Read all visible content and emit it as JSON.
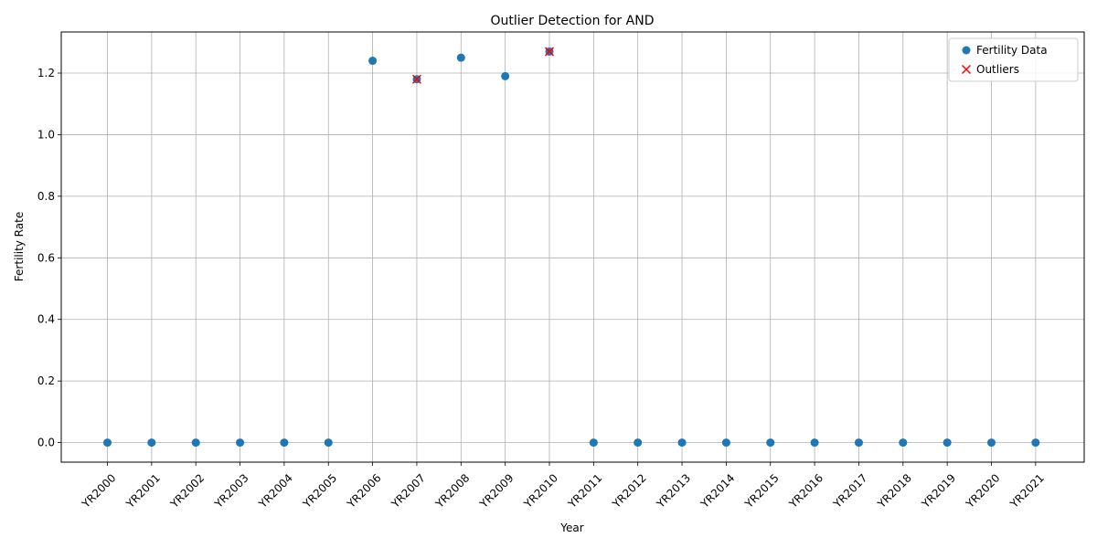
{
  "chart_data": {
    "type": "scatter",
    "title": "Outlier Detection for AND",
    "xlabel": "Year",
    "ylabel": "Fertility Rate",
    "categories": [
      "YR2000",
      "YR2001",
      "YR2002",
      "YR2003",
      "YR2004",
      "YR2005",
      "YR2006",
      "YR2007",
      "YR2008",
      "YR2009",
      "YR2010",
      "YR2011",
      "YR2012",
      "YR2013",
      "YR2014",
      "YR2015",
      "YR2016",
      "YR2017",
      "YR2018",
      "YR2019",
      "YR2020",
      "YR2021"
    ],
    "y_ticks": [
      "0.0",
      "0.2",
      "0.4",
      "0.6",
      "0.8",
      "1.0",
      "1.2"
    ],
    "y_tick_values": [
      0,
      0.2,
      0.4,
      0.6,
      0.8,
      1.0,
      1.2
    ],
    "ylim": [
      -0.0635,
      1.3335
    ],
    "grid": true,
    "legend_position": "top-right",
    "series": [
      {
        "name": "Fertility Data",
        "marker": "circle",
        "color": "#1f77b4",
        "values": [
          0,
          0,
          0,
          0,
          0,
          0,
          1.24,
          1.18,
          1.25,
          1.19,
          1.27,
          0,
          0,
          0,
          0,
          0,
          0,
          0,
          0,
          0,
          0,
          0
        ]
      },
      {
        "name": "Outliers",
        "marker": "x",
        "color": "#ff0000",
        "points": [
          {
            "x": "YR2007",
            "y": 1.18
          },
          {
            "x": "YR2010",
            "y": 1.27
          }
        ]
      }
    ]
  }
}
